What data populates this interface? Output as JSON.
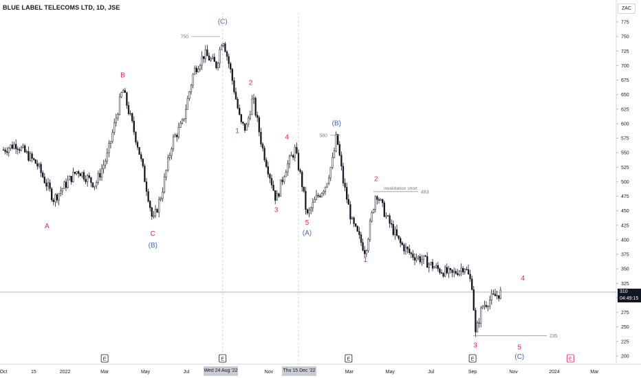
{
  "header": {
    "ticker": "BLUE LABEL TELECOMS LTD, 1D, JSE",
    "currency": "ZAC"
  },
  "last_price": {
    "value": "310",
    "countdown": "04:49:15"
  },
  "crosshair_labels": [
    "Wed 24 Aug '22",
    "Thu 15 Dec '22"
  ],
  "chart_data": {
    "type": "candlestick",
    "title": "BLUE LABEL TELECOMS LTD, 1D, JSE",
    "ylim": [
      190,
      790
    ],
    "y_ticks": [
      775,
      750,
      725,
      700,
      675,
      650,
      625,
      600,
      575,
      550,
      525,
      500,
      475,
      450,
      425,
      400,
      375,
      350,
      325,
      300,
      275,
      250,
      225,
      200
    ],
    "x_ticks": [
      {
        "label": "Oct",
        "date": "2021-10-01"
      },
      {
        "label": "15",
        "date": "2021-11-15"
      },
      {
        "label": "2022",
        "date": "2022-01-01"
      },
      {
        "label": "Mar",
        "date": "2022-03-01"
      },
      {
        "label": "May",
        "date": "2022-05-01"
      },
      {
        "label": "Jul",
        "date": "2022-07-01"
      },
      {
        "label": "Nov",
        "date": "2022-11-01"
      },
      {
        "label": "Mar",
        "date": "2023-03-01"
      },
      {
        "label": "May",
        "date": "2023-05-01"
      },
      {
        "label": "Jul",
        "date": "2023-07-01"
      },
      {
        "label": "Sep",
        "date": "2023-09-01"
      },
      {
        "label": "Nov",
        "date": "2023-11-01"
      },
      {
        "label": "2024",
        "date": "2024-01-01"
      },
      {
        "label": "Mar",
        "date": "2024-03-01"
      }
    ],
    "price_path": [
      {
        "date": "2021-10-01",
        "close": 555
      },
      {
        "date": "2021-10-20",
        "close": 565
      },
      {
        "date": "2021-11-20",
        "close": 530
      },
      {
        "date": "2021-12-15",
        "close": 470
      },
      {
        "date": "2022-01-05",
        "close": 500
      },
      {
        "date": "2022-01-20",
        "close": 520
      },
      {
        "date": "2022-02-15",
        "close": 495
      },
      {
        "date": "2022-03-05",
        "close": 545
      },
      {
        "date": "2022-03-28",
        "close": 660
      },
      {
        "date": "2022-04-20",
        "close": 560
      },
      {
        "date": "2022-05-06",
        "close": 470
      },
      {
        "date": "2022-05-12",
        "close": 430
      },
      {
        "date": "2022-05-25",
        "close": 480
      },
      {
        "date": "2022-06-10",
        "close": 570
      },
      {
        "date": "2022-06-25",
        "close": 600
      },
      {
        "date": "2022-07-12",
        "close": 690
      },
      {
        "date": "2022-07-28",
        "close": 720
      },
      {
        "date": "2022-08-15",
        "close": 700
      },
      {
        "date": "2022-08-24",
        "close": 750
      },
      {
        "date": "2022-09-05",
        "close": 690
      },
      {
        "date": "2022-09-20",
        "close": 600
      },
      {
        "date": "2022-09-28",
        "close": 590
      },
      {
        "date": "2022-10-08",
        "close": 645
      },
      {
        "date": "2022-10-22",
        "close": 560
      },
      {
        "date": "2022-11-05",
        "close": 500
      },
      {
        "date": "2022-11-12",
        "close": 468
      },
      {
        "date": "2022-11-25",
        "close": 520
      },
      {
        "date": "2022-12-10",
        "close": 555
      },
      {
        "date": "2022-12-20",
        "close": 500
      },
      {
        "date": "2022-12-28",
        "close": 440
      },
      {
        "date": "2023-01-10",
        "close": 470
      },
      {
        "date": "2023-01-25",
        "close": 495
      },
      {
        "date": "2023-02-05",
        "close": 540
      },
      {
        "date": "2023-02-10",
        "close": 580
      },
      {
        "date": "2023-02-20",
        "close": 500
      },
      {
        "date": "2023-03-05",
        "close": 430
      },
      {
        "date": "2023-03-25",
        "close": 380
      },
      {
        "date": "2023-04-10",
        "close": 483
      },
      {
        "date": "2023-04-25",
        "close": 440
      },
      {
        "date": "2023-05-15",
        "close": 395
      },
      {
        "date": "2023-06-01",
        "close": 375
      },
      {
        "date": "2023-06-20",
        "close": 365
      },
      {
        "date": "2023-07-10",
        "close": 350
      },
      {
        "date": "2023-08-01",
        "close": 340
      },
      {
        "date": "2023-08-20",
        "close": 355
      },
      {
        "date": "2023-09-01",
        "close": 320
      },
      {
        "date": "2023-09-05",
        "close": 235
      },
      {
        "date": "2023-09-15",
        "close": 285
      },
      {
        "date": "2023-09-30",
        "close": 300
      },
      {
        "date": "2023-10-15",
        "close": 310
      }
    ],
    "horizontal_levels": [
      {
        "price": 750,
        "label": "750"
      },
      {
        "price": 580,
        "label": "580"
      },
      {
        "price": 483,
        "label": "483",
        "note": "invalidation short"
      },
      {
        "price": 235,
        "label": "235"
      }
    ],
    "current_price_line": 310,
    "vertical_markers": [
      "2022-08-24",
      "2022-12-15"
    ],
    "event_markers": [
      {
        "date": "2022-03-01",
        "label": "E"
      },
      {
        "date": "2022-08-24",
        "label": "E"
      },
      {
        "date": "2023-02-28",
        "label": "E"
      },
      {
        "date": "2023-09-01",
        "label": "E"
      },
      {
        "date": "2024-01-25",
        "label": "E",
        "color": "#e91e63"
      }
    ],
    "wave_labels": [
      {
        "date": "2021-12-05",
        "price": 420,
        "text": "A",
        "color": "#e91e63"
      },
      {
        "date": "2022-03-28",
        "price": 680,
        "text": "B",
        "color": "#e91e63"
      },
      {
        "date": "2022-05-12",
        "price": 407,
        "text": "C",
        "color": "#e91e63"
      },
      {
        "date": "2022-05-12",
        "price": 387,
        "text": "(B)",
        "color": "#3a66c4"
      },
      {
        "date": "2022-08-24",
        "price": 772,
        "text": "(C)",
        "color": "#3a66c4"
      },
      {
        "date": "2022-09-15",
        "price": 584,
        "text": "1",
        "color": "#e91e63"
      },
      {
        "date": "2022-10-05",
        "price": 667,
        "text": "2",
        "color": "#e91e63"
      },
      {
        "date": "2022-11-12",
        "price": 448,
        "text": "3",
        "color": "#e91e63"
      },
      {
        "date": "2022-11-28",
        "price": 573,
        "text": "4",
        "color": "#e91e63"
      },
      {
        "date": "2022-12-28",
        "price": 426,
        "text": "5",
        "color": "#e91e63"
      },
      {
        "date": "2022-12-28",
        "price": 408,
        "text": "(A)",
        "color": "#3a66c4"
      },
      {
        "date": "2023-02-10",
        "price": 597,
        "text": "(B)",
        "color": "#3a66c4"
      },
      {
        "date": "2023-03-25",
        "price": 362,
        "text": "1",
        "color": "#e91e63"
      },
      {
        "date": "2023-04-10",
        "price": 501,
        "text": "2",
        "color": "#e91e63"
      },
      {
        "date": "2023-09-05",
        "price": 215,
        "text": "3",
        "color": "#e91e63"
      },
      {
        "date": "2023-11-15",
        "price": 330,
        "text": "4",
        "color": "#e91e63"
      },
      {
        "date": "2023-11-10",
        "price": 211,
        "text": "5",
        "color": "#e91e63"
      },
      {
        "date": "2023-11-10",
        "price": 195,
        "text": "(C)",
        "color": "#3a66c4"
      }
    ],
    "colors": {
      "candle": "#131722",
      "grid": "#e0e3eb",
      "pink": "#e91e63",
      "blue": "#3a66c4",
      "axis_text": "#131722",
      "level": "#9598a1"
    }
  }
}
